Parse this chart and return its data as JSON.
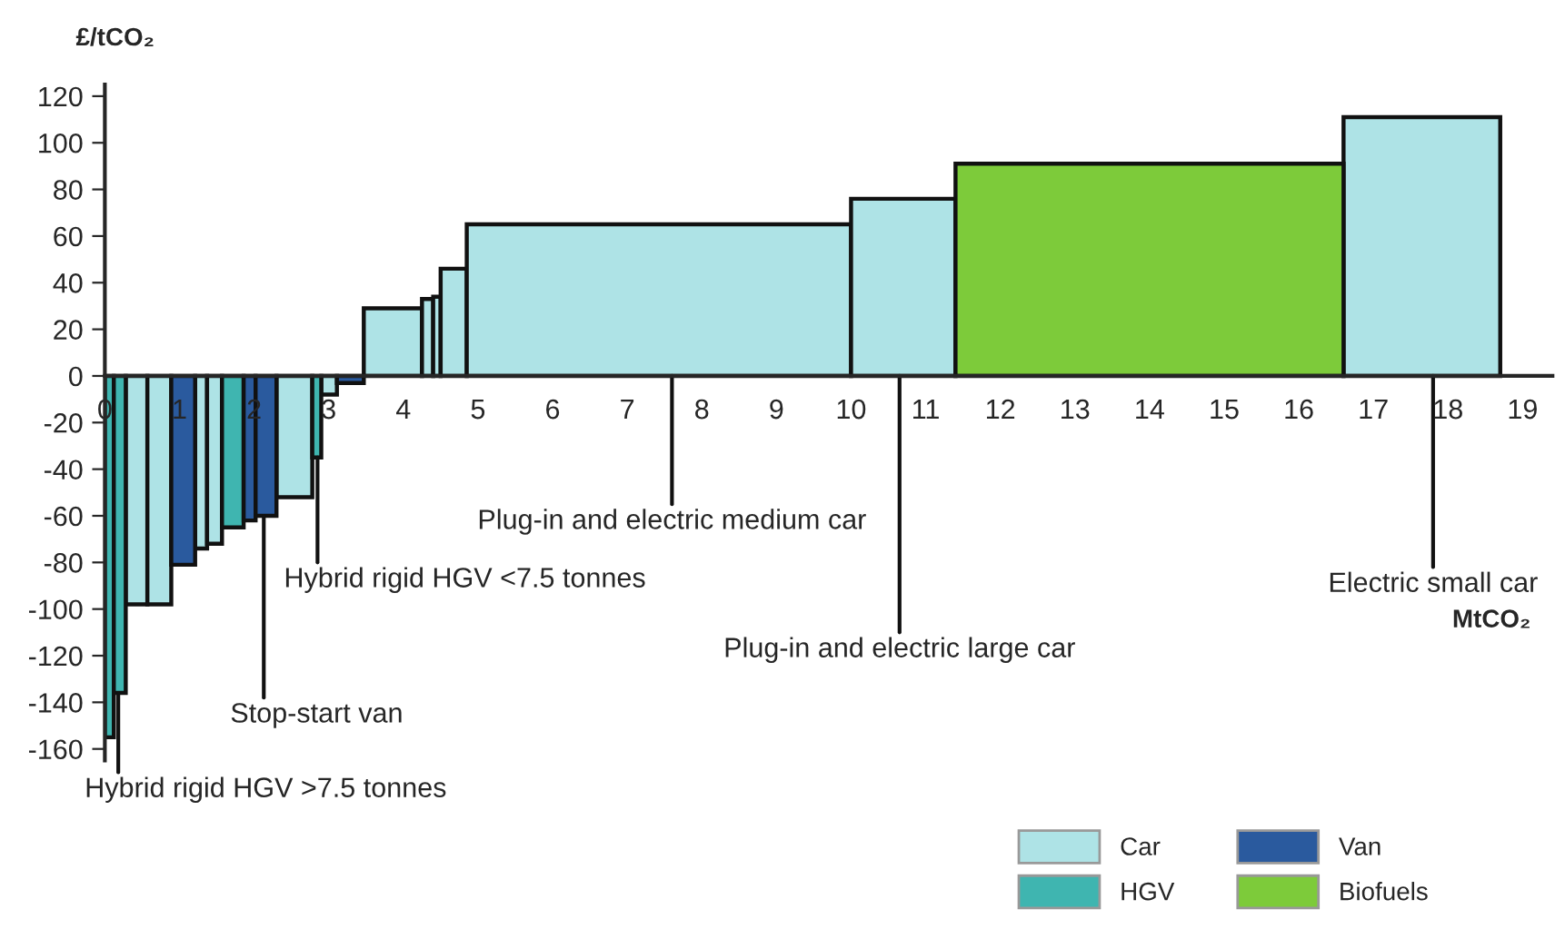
{
  "chart_data": {
    "type": "histogram",
    "ylabel": "£/tCO₂",
    "xlabel": "MtCO₂",
    "bins": [
      0,
      0.12,
      0.28,
      0.57,
      0.89,
      1.21,
      1.37,
      1.57,
      1.86,
      2.02,
      2.3,
      2.78,
      2.9,
      3.11,
      3.47,
      4.25,
      4.4,
      4.5,
      4.85,
      10.0,
      11.4,
      16.6,
      18.7
    ],
    "series": [
      {
        "name": "Car",
        "color": "#aee3e6",
        "values": [
          null,
          null,
          -98,
          -98,
          null,
          -74,
          -72,
          null,
          null,
          null,
          -52,
          null,
          -8,
          null,
          29,
          33,
          34,
          46,
          65,
          76,
          null,
          111
        ]
      },
      {
        "name": "HGV",
        "color": "#3fb5b0",
        "values": [
          -155,
          -136,
          null,
          null,
          null,
          null,
          null,
          -65,
          null,
          null,
          null,
          -35,
          null,
          null,
          null,
          null,
          null,
          null,
          null,
          null,
          null,
          null
        ]
      },
      {
        "name": "Van",
        "color": "#2a5a9e",
        "values": [
          null,
          null,
          null,
          null,
          -81,
          null,
          null,
          null,
          -62,
          -60,
          null,
          null,
          null,
          -3,
          null,
          null,
          null,
          null,
          null,
          null,
          null,
          null
        ]
      },
      {
        "name": "Biofuels",
        "color": "#7dcb3a",
        "values": [
          null,
          null,
          null,
          null,
          null,
          null,
          null,
          null,
          null,
          null,
          null,
          null,
          null,
          null,
          null,
          null,
          null,
          null,
          null,
          null,
          91,
          null
        ]
      }
    ],
    "xlim": [
      0,
      19.4
    ],
    "xticks": [
      0,
      1,
      2,
      3,
      4,
      5,
      6,
      7,
      8,
      9,
      10,
      11,
      12,
      13,
      14,
      15,
      16,
      17,
      18,
      19
    ],
    "ylim": [
      -165,
      125
    ],
    "yticks": [
      {
        "value": -160,
        "label": "-160"
      },
      {
        "value": -140,
        "label": "-140"
      },
      {
        "value": -120,
        "label": "-120"
      },
      {
        "value": -100,
        "label": "-100"
      },
      {
        "value": -80,
        "label": "-80"
      },
      {
        "value": -60,
        "label": "-60"
      },
      {
        "value": -40,
        "label": "-40"
      },
      {
        "value": -20,
        "label": "-20"
      },
      0,
      20,
      40,
      60,
      80,
      100,
      120
    ],
    "annotations": [
      {
        "text": "Plug-in and electric medium car",
        "x": 7.6,
        "y": 0
      },
      {
        "text": "Plug-in and electric large car",
        "x": 10.65,
        "y": 0
      },
      {
        "text": "Electric small car",
        "x": 17.8,
        "y": 0
      },
      {
        "text": "Hybrid rigid HGV <7.5 tonnes",
        "x": 2.85,
        "y": -35
      },
      {
        "text": "Stop-start van",
        "x": 2.13,
        "y": -60
      },
      {
        "text": "Hybrid rigid HGV >7.5 tonnes",
        "x": 0.18,
        "y": -136
      }
    ],
    "grid": false,
    "legend": "bottom right"
  }
}
